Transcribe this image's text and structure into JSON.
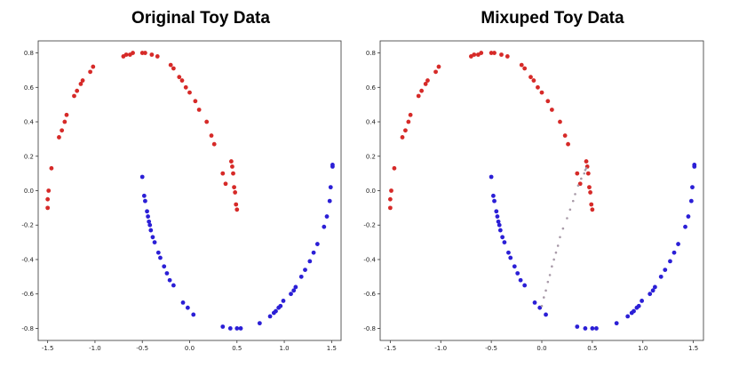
{
  "colors": {
    "class0": "#d62a28",
    "class1": "#2b1fd6",
    "mixed": "#a89aa8",
    "frame": "#333333"
  },
  "chart_data": [
    {
      "type": "scatter",
      "title": "Original Toy Data",
      "xlim": [
        -1.6,
        1.6
      ],
      "ylim": [
        -0.87,
        0.87
      ],
      "xticks": [
        -1.5,
        -1.0,
        -0.5,
        0.0,
        0.5,
        1.0,
        1.5
      ],
      "xtick_labels": [
        "-1.5",
        "-1.0",
        "-0.5",
        "0.0",
        "0.5",
        "1.0",
        "1.5"
      ],
      "yticks": [
        0.8,
        0.6,
        0.4,
        0.2,
        0.0,
        -0.2,
        -0.4,
        -0.6,
        -0.8
      ],
      "ytick_labels": [
        "0.8",
        "0.6",
        "0.4",
        "0.2",
        "0.0",
        "-0.2",
        "-0.4",
        "-0.6",
        "-0.8"
      ],
      "grid": false,
      "series": [
        {
          "color": "#d62a28",
          "points": [
            [
              -1.5,
              -0.1
            ],
            [
              -1.5,
              -0.05
            ],
            [
              -1.49,
              0.0
            ],
            [
              -1.46,
              0.13
            ],
            [
              -1.38,
              0.31
            ],
            [
              -1.35,
              0.35
            ],
            [
              -1.32,
              0.4
            ],
            [
              -1.3,
              0.44
            ],
            [
              -1.22,
              0.55
            ],
            [
              -1.19,
              0.58
            ],
            [
              -1.15,
              0.62
            ],
            [
              -1.13,
              0.64
            ],
            [
              -1.05,
              0.69
            ],
            [
              -1.02,
              0.72
            ],
            [
              -0.7,
              0.78
            ],
            [
              -0.67,
              0.79
            ],
            [
              -0.63,
              0.79
            ],
            [
              -0.6,
              0.8
            ],
            [
              -0.5,
              0.8
            ],
            [
              -0.47,
              0.8
            ],
            [
              -0.4,
              0.79
            ],
            [
              -0.34,
              0.78
            ],
            [
              -0.2,
              0.73
            ],
            [
              -0.17,
              0.71
            ],
            [
              -0.11,
              0.66
            ],
            [
              -0.08,
              0.64
            ],
            [
              -0.04,
              0.6
            ],
            [
              0.0,
              0.57
            ],
            [
              0.06,
              0.52
            ],
            [
              0.1,
              0.47
            ],
            [
              0.18,
              0.4
            ],
            [
              0.23,
              0.32
            ],
            [
              0.26,
              0.27
            ],
            [
              0.35,
              0.1
            ],
            [
              0.38,
              0.04
            ],
            [
              0.44,
              0.17
            ],
            [
              0.45,
              0.14
            ],
            [
              0.46,
              0.1
            ],
            [
              0.47,
              0.02
            ],
            [
              0.48,
              -0.01
            ],
            [
              0.49,
              -0.08
            ],
            [
              0.5,
              -0.11
            ]
          ]
        },
        {
          "color": "#2b1fd6",
          "points": [
            [
              -0.5,
              0.08
            ],
            [
              -0.48,
              -0.03
            ],
            [
              -0.47,
              -0.06
            ],
            [
              -0.45,
              -0.12
            ],
            [
              -0.44,
              -0.15
            ],
            [
              -0.43,
              -0.18
            ],
            [
              -0.42,
              -0.2
            ],
            [
              -0.41,
              -0.23
            ],
            [
              -0.39,
              -0.27
            ],
            [
              -0.37,
              -0.3
            ],
            [
              -0.33,
              -0.36
            ],
            [
              -0.31,
              -0.39
            ],
            [
              -0.27,
              -0.44
            ],
            [
              -0.24,
              -0.48
            ],
            [
              -0.21,
              -0.52
            ],
            [
              -0.17,
              -0.55
            ],
            [
              -0.07,
              -0.65
            ],
            [
              -0.02,
              -0.68
            ],
            [
              0.04,
              -0.72
            ],
            [
              0.35,
              -0.79
            ],
            [
              0.43,
              -0.8
            ],
            [
              0.5,
              -0.8
            ],
            [
              0.54,
              -0.8
            ],
            [
              0.74,
              -0.77
            ],
            [
              0.85,
              -0.73
            ],
            [
              0.89,
              -0.71
            ],
            [
              0.91,
              -0.7
            ],
            [
              0.94,
              -0.68
            ],
            [
              0.96,
              -0.67
            ],
            [
              0.99,
              -0.64
            ],
            [
              1.07,
              -0.6
            ],
            [
              1.1,
              -0.58
            ],
            [
              1.12,
              -0.56
            ],
            [
              1.18,
              -0.5
            ],
            [
              1.22,
              -0.46
            ],
            [
              1.27,
              -0.41
            ],
            [
              1.31,
              -0.36
            ],
            [
              1.35,
              -0.31
            ],
            [
              1.42,
              -0.21
            ],
            [
              1.45,
              -0.15
            ],
            [
              1.48,
              -0.06
            ],
            [
              1.49,
              0.02
            ],
            [
              1.51,
              0.14
            ],
            [
              1.51,
              0.15
            ]
          ]
        }
      ]
    },
    {
      "type": "scatter",
      "title": "Mixuped Toy Data",
      "xlim": [
        -1.6,
        1.6
      ],
      "ylim": [
        -0.87,
        0.87
      ],
      "xticks": [
        -1.5,
        -1.0,
        -0.5,
        0.0,
        0.5,
        1.0,
        1.5
      ],
      "xtick_labels": [
        "-1.5",
        "-1.0",
        "-0.5",
        "0.0",
        "0.5",
        "1.0",
        "1.5"
      ],
      "yticks": [
        0.8,
        0.6,
        0.4,
        0.2,
        0.0,
        -0.2,
        -0.4,
        -0.6,
        -0.8
      ],
      "ytick_labels": [
        "0.8",
        "0.6",
        "0.4",
        "0.2",
        "0.0",
        "-0.2",
        "-0.4",
        "-0.6",
        "-0.8"
      ],
      "grid": false,
      "series": [
        {
          "color": "#d62a28",
          "points": [
            [
              -1.5,
              -0.1
            ],
            [
              -1.5,
              -0.05
            ],
            [
              -1.49,
              0.0
            ],
            [
              -1.46,
              0.13
            ],
            [
              -1.38,
              0.31
            ],
            [
              -1.35,
              0.35
            ],
            [
              -1.32,
              0.4
            ],
            [
              -1.3,
              0.44
            ],
            [
              -1.22,
              0.55
            ],
            [
              -1.19,
              0.58
            ],
            [
              -1.15,
              0.62
            ],
            [
              -1.13,
              0.64
            ],
            [
              -1.05,
              0.69
            ],
            [
              -1.02,
              0.72
            ],
            [
              -0.7,
              0.78
            ],
            [
              -0.67,
              0.79
            ],
            [
              -0.63,
              0.79
            ],
            [
              -0.6,
              0.8
            ],
            [
              -0.5,
              0.8
            ],
            [
              -0.47,
              0.8
            ],
            [
              -0.4,
              0.79
            ],
            [
              -0.34,
              0.78
            ],
            [
              -0.2,
              0.73
            ],
            [
              -0.17,
              0.71
            ],
            [
              -0.11,
              0.66
            ],
            [
              -0.08,
              0.64
            ],
            [
              -0.04,
              0.6
            ],
            [
              0.0,
              0.57
            ],
            [
              0.06,
              0.52
            ],
            [
              0.1,
              0.47
            ],
            [
              0.18,
              0.4
            ],
            [
              0.23,
              0.32
            ],
            [
              0.26,
              0.27
            ],
            [
              0.35,
              0.1
            ],
            [
              0.38,
              0.04
            ],
            [
              0.44,
              0.17
            ],
            [
              0.45,
              0.14
            ],
            [
              0.46,
              0.1
            ],
            [
              0.47,
              0.02
            ],
            [
              0.48,
              -0.01
            ],
            [
              0.49,
              -0.08
            ],
            [
              0.5,
              -0.11
            ]
          ]
        },
        {
          "color": "#2b1fd6",
          "points": [
            [
              -0.5,
              0.08
            ],
            [
              -0.48,
              -0.03
            ],
            [
              -0.47,
              -0.06
            ],
            [
              -0.45,
              -0.12
            ],
            [
              -0.44,
              -0.15
            ],
            [
              -0.43,
              -0.18
            ],
            [
              -0.42,
              -0.2
            ],
            [
              -0.41,
              -0.23
            ],
            [
              -0.39,
              -0.27
            ],
            [
              -0.37,
              -0.3
            ],
            [
              -0.33,
              -0.36
            ],
            [
              -0.31,
              -0.39
            ],
            [
              -0.27,
              -0.44
            ],
            [
              -0.24,
              -0.48
            ],
            [
              -0.21,
              -0.52
            ],
            [
              -0.17,
              -0.55
            ],
            [
              -0.07,
              -0.65
            ],
            [
              -0.02,
              -0.68
            ],
            [
              0.04,
              -0.72
            ],
            [
              0.35,
              -0.79
            ],
            [
              0.43,
              -0.8
            ],
            [
              0.5,
              -0.8
            ],
            [
              0.54,
              -0.8
            ],
            [
              0.74,
              -0.77
            ],
            [
              0.85,
              -0.73
            ],
            [
              0.89,
              -0.71
            ],
            [
              0.91,
              -0.7
            ],
            [
              0.94,
              -0.68
            ],
            [
              0.96,
              -0.67
            ],
            [
              0.99,
              -0.64
            ],
            [
              1.07,
              -0.6
            ],
            [
              1.1,
              -0.58
            ],
            [
              1.12,
              -0.56
            ],
            [
              1.18,
              -0.5
            ],
            [
              1.22,
              -0.46
            ],
            [
              1.27,
              -0.41
            ],
            [
              1.31,
              -0.36
            ],
            [
              1.35,
              -0.31
            ],
            [
              1.42,
              -0.21
            ],
            [
              1.45,
              -0.15
            ],
            [
              1.48,
              -0.06
            ],
            [
              1.49,
              0.02
            ],
            [
              1.51,
              0.14
            ],
            [
              1.51,
              0.15
            ]
          ]
        },
        {
          "color": "#a89aa8",
          "points": [
            [
              0.0,
              -0.67
            ],
            [
              0.02,
              -0.62
            ],
            [
              0.04,
              -0.58
            ],
            [
              0.06,
              -0.53
            ],
            [
              0.08,
              -0.49
            ],
            [
              0.1,
              -0.44
            ],
            [
              0.12,
              -0.4
            ],
            [
              0.14,
              -0.36
            ],
            [
              0.16,
              -0.32
            ],
            [
              0.18,
              -0.27
            ],
            [
              0.21,
              -0.22
            ],
            [
              0.25,
              -0.16
            ],
            [
              0.28,
              -0.11
            ],
            [
              0.31,
              -0.06
            ],
            [
              0.33,
              -0.02
            ],
            [
              0.36,
              0.03
            ],
            [
              0.39,
              0.07
            ],
            [
              0.42,
              0.1
            ],
            [
              0.43,
              0.12
            ],
            [
              0.44,
              0.13
            ]
          ]
        }
      ]
    }
  ]
}
